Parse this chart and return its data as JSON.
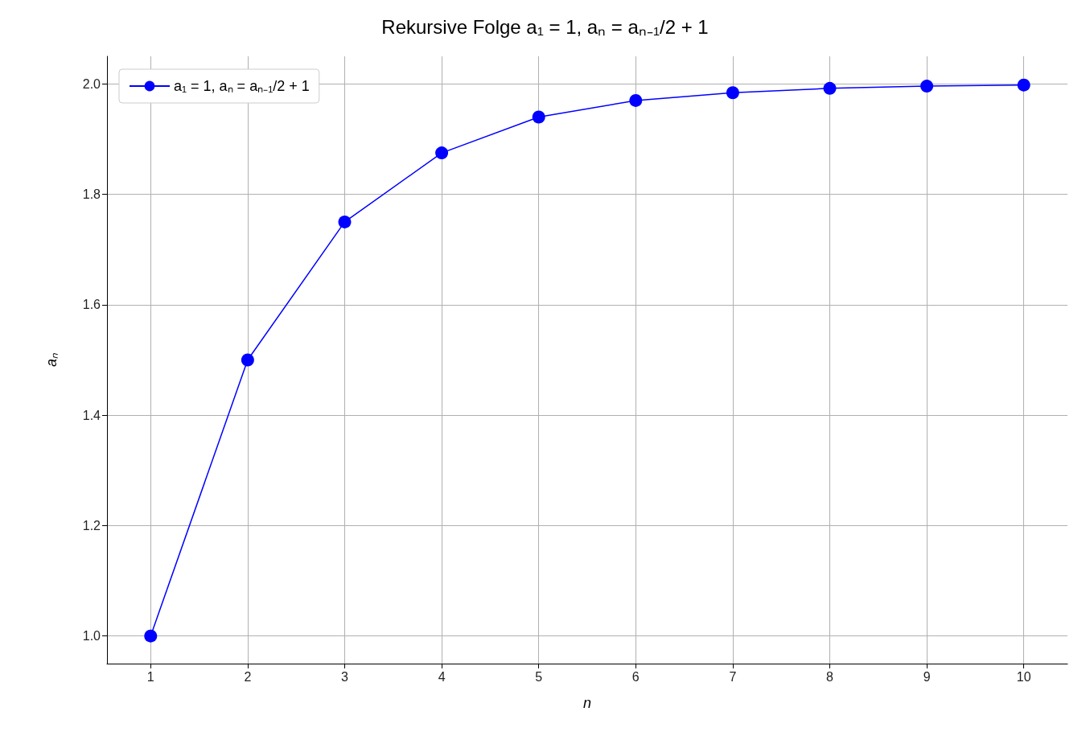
{
  "chart_data": {
    "type": "line",
    "title": "Rekursive Folge a₁ = 1, aₙ = aₙ₋₁/2 + 1",
    "xlabel": "n",
    "ylabel": "aₙ",
    "x": [
      1,
      2,
      3,
      4,
      5,
      6,
      7,
      8,
      9,
      10
    ],
    "series": [
      {
        "name": "a₁ = 1, aₙ = aₙ₋₁/2 + 1",
        "color": "#0000ff",
        "values": [
          1,
          1.5,
          1.75,
          1.875,
          1.94,
          1.97,
          1.984,
          1.992,
          1.996,
          1.998
        ]
      }
    ],
    "xlim": [
      0.55,
      10.45
    ],
    "xticks": [
      1,
      2,
      3,
      4,
      5,
      6,
      7,
      8,
      9,
      10
    ],
    "ylim": [
      0.95,
      2.05
    ],
    "yticks": [
      {
        "value": 1,
        "label": "1.0"
      },
      {
        "value": 1.2,
        "label": "1.2"
      },
      {
        "value": 1.4,
        "label": "1.4"
      },
      {
        "value": 1.6,
        "label": "1.6"
      },
      {
        "value": 1.8,
        "label": "1.8"
      },
      {
        "value": 2,
        "label": "2.0"
      }
    ],
    "grid": true,
    "legend": "top left",
    "marker": "circle",
    "line_style": "solid"
  }
}
